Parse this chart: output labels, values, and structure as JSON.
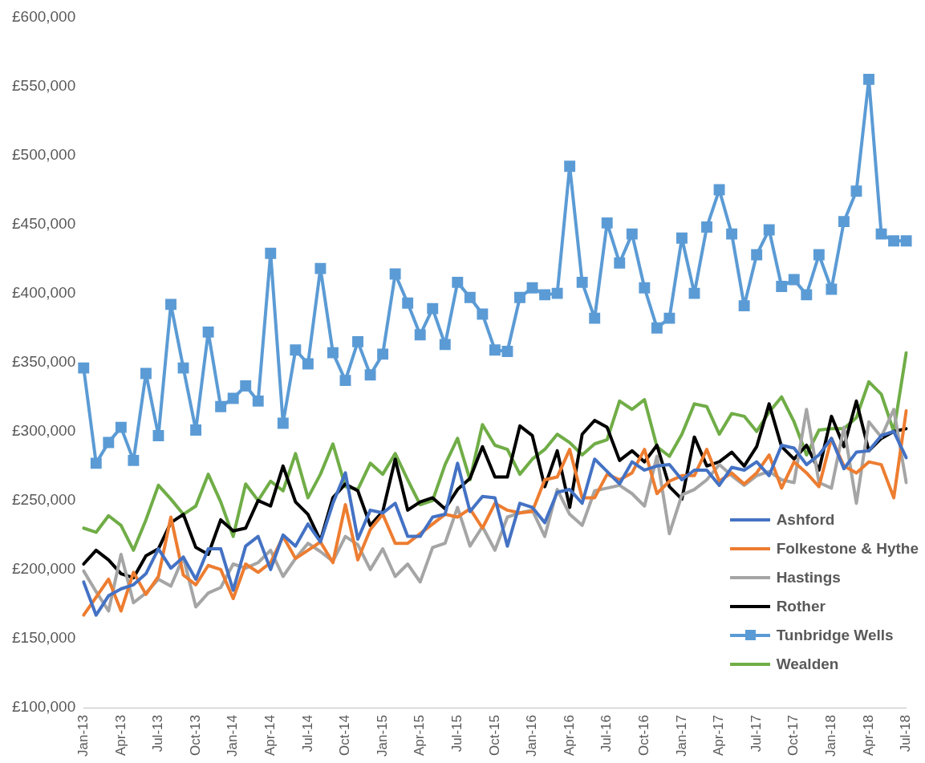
{
  "chart_data": {
    "type": "line",
    "categories": [
      "Jan-13",
      null,
      null,
      "Apr-13",
      null,
      null,
      "Jul-13",
      null,
      null,
      "Oct-13",
      null,
      null,
      "Jan-14",
      null,
      null,
      "Apr-14",
      null,
      null,
      "Jul-14",
      null,
      null,
      "Oct-14",
      null,
      null,
      "Jan-15",
      null,
      null,
      "Apr-15",
      null,
      null,
      "Jul-15",
      null,
      null,
      "Oct-15",
      null,
      null,
      "Jan-16",
      null,
      null,
      "Apr-16",
      null,
      null,
      "Jul-16",
      null,
      null,
      "Oct-16",
      null,
      null,
      "Jan-17",
      null,
      null,
      "Apr-17",
      null,
      null,
      "Jul-17",
      null,
      null,
      "Oct-17",
      null,
      null,
      "Jan-18",
      null,
      null,
      "Apr-18",
      null,
      null,
      "Jul-18"
    ],
    "series": [
      {
        "name": "Ashford",
        "color": "#4472c4",
        "values": [
          191000,
          167000,
          181000,
          186000,
          189000,
          197000,
          215000,
          201000,
          209000,
          193000,
          215000,
          215000,
          185000,
          217000,
          224000,
          200000,
          225000,
          217000,
          233000,
          220000,
          248000,
          270000,
          222000,
          243000,
          241000,
          248000,
          224000,
          224000,
          238000,
          240000,
          277000,
          242000,
          253000,
          252000,
          217000,
          248000,
          245000,
          234000,
          256000,
          258000,
          248000,
          280000,
          271000,
          262000,
          278000,
          272000,
          275000,
          276000,
          265000,
          272000,
          272000,
          261000,
          274000,
          272000,
          278000,
          268000,
          290000,
          288000,
          276000,
          283000,
          295000,
          273000,
          285000,
          286000,
          297000,
          300000,
          281000
        ]
      },
      {
        "name": "Folkestone & Hythe",
        "color": "#ed7d31",
        "values": [
          167000,
          180000,
          193000,
          170000,
          198000,
          182000,
          195000,
          238000,
          196000,
          189000,
          203000,
          200000,
          179000,
          204000,
          198000,
          205000,
          224000,
          208000,
          214000,
          220000,
          205000,
          247000,
          207000,
          229000,
          240000,
          219000,
          219000,
          226000,
          233000,
          240000,
          238000,
          244000,
          230000,
          248000,
          243000,
          241000,
          242000,
          265000,
          267000,
          287000,
          252000,
          252000,
          269000,
          265000,
          270000,
          287000,
          255000,
          264000,
          268000,
          268000,
          287000,
          264000,
          270000,
          262000,
          270000,
          283000,
          259000,
          278000,
          270000,
          260000,
          295000,
          275000,
          270000,
          278000,
          276000,
          252000,
          315000
        ]
      },
      {
        "name": "Hastings",
        "color": "#a5a5a5",
        "values": [
          199000,
          184000,
          170000,
          211000,
          176000,
          183000,
          193000,
          188000,
          209000,
          173000,
          183000,
          187000,
          204000,
          201000,
          205000,
          214000,
          195000,
          208000,
          219000,
          213000,
          206000,
          224000,
          218000,
          200000,
          215000,
          195000,
          204000,
          191000,
          216000,
          219000,
          245000,
          217000,
          231000,
          214000,
          238000,
          241000,
          243000,
          224000,
          258000,
          240000,
          232000,
          257000,
          259000,
          261000,
          255000,
          246000,
          282000,
          226000,
          254000,
          258000,
          265000,
          276000,
          268000,
          261000,
          268000,
          271000,
          265000,
          263000,
          316000,
          263000,
          259000,
          303000,
          248000,
          307000,
          296000,
          316000,
          263000
        ]
      },
      {
        "name": "Rother",
        "color": "#000000",
        "values": [
          204000,
          214000,
          207000,
          197000,
          194000,
          210000,
          215000,
          234000,
          240000,
          216000,
          211000,
          236000,
          228000,
          230000,
          250000,
          246000,
          275000,
          249000,
          240000,
          221000,
          252000,
          262000,
          257000,
          232000,
          242000,
          280000,
          243000,
          249000,
          252000,
          244000,
          258000,
          266000,
          289000,
          267000,
          267000,
          304000,
          297000,
          260000,
          286000,
          245000,
          298000,
          308000,
          303000,
          279000,
          286000,
          278000,
          290000,
          260000,
          251000,
          296000,
          275000,
          278000,
          285000,
          275000,
          289000,
          320000,
          289000,
          280000,
          290000,
          272000,
          311000,
          289000,
          322000,
          286000,
          295000,
          300000,
          302000
        ]
      },
      {
        "name": "Tunbridge Wells",
        "color": "#5b9bd5",
        "marker": "square",
        "values": [
          346000,
          277000,
          292000,
          303000,
          279000,
          342000,
          297000,
          392000,
          346000,
          301000,
          372000,
          318000,
          324000,
          333000,
          322000,
          429000,
          306000,
          359000,
          349000,
          418000,
          357000,
          337000,
          365000,
          341000,
          356000,
          414000,
          393000,
          370000,
          389000,
          363000,
          408000,
          397000,
          385000,
          359000,
          358000,
          397000,
          404000,
          399000,
          400000,
          492000,
          408000,
          382000,
          451000,
          422000,
          443000,
          404000,
          375000,
          382000,
          440000,
          400000,
          448000,
          475000,
          443000,
          391000,
          428000,
          446000,
          405000,
          410000,
          399000,
          428000,
          403000,
          452000,
          474000,
          555000,
          443000,
          438000,
          438000
        ]
      },
      {
        "name": "Wealden",
        "color": "#70ad47",
        "values": [
          230000,
          227000,
          239000,
          232000,
          214000,
          236000,
          261000,
          251000,
          240000,
          246000,
          269000,
          249000,
          224000,
          262000,
          250000,
          264000,
          257000,
          284000,
          252000,
          269000,
          291000,
          260000,
          258000,
          277000,
          269000,
          284000,
          265000,
          247000,
          250000,
          276000,
          295000,
          265000,
          305000,
          290000,
          287000,
          269000,
          280000,
          287000,
          298000,
          292000,
          283000,
          291000,
          294000,
          322000,
          316000,
          323000,
          289000,
          282000,
          298000,
          320000,
          318000,
          298000,
          313000,
          311000,
          300000,
          314000,
          325000,
          307000,
          283000,
          301000,
          302000,
          302000,
          310000,
          336000,
          327000,
          300000,
          357000
        ]
      }
    ],
    "ylim": [
      100000,
      600000
    ],
    "yticks": [
      {
        "value": 100000,
        "label": "£100,000"
      },
      {
        "value": 150000,
        "label": "£150,000"
      },
      {
        "value": 200000,
        "label": "£200,000"
      },
      {
        "value": 250000,
        "label": "£250,000"
      },
      {
        "value": 300000,
        "label": "£300,000"
      },
      {
        "value": 350000,
        "label": "£350,000"
      },
      {
        "value": 400000,
        "label": "£400,000"
      },
      {
        "value": 450000,
        "label": "£450,000"
      },
      {
        "value": 500000,
        "label": "£500,000"
      },
      {
        "value": 550000,
        "label": "£550,000"
      },
      {
        "value": 600000,
        "label": "£600,000"
      }
    ],
    "grid": false,
    "legend": "bottom right",
    "marker": "none",
    "line_style": "solid"
  }
}
